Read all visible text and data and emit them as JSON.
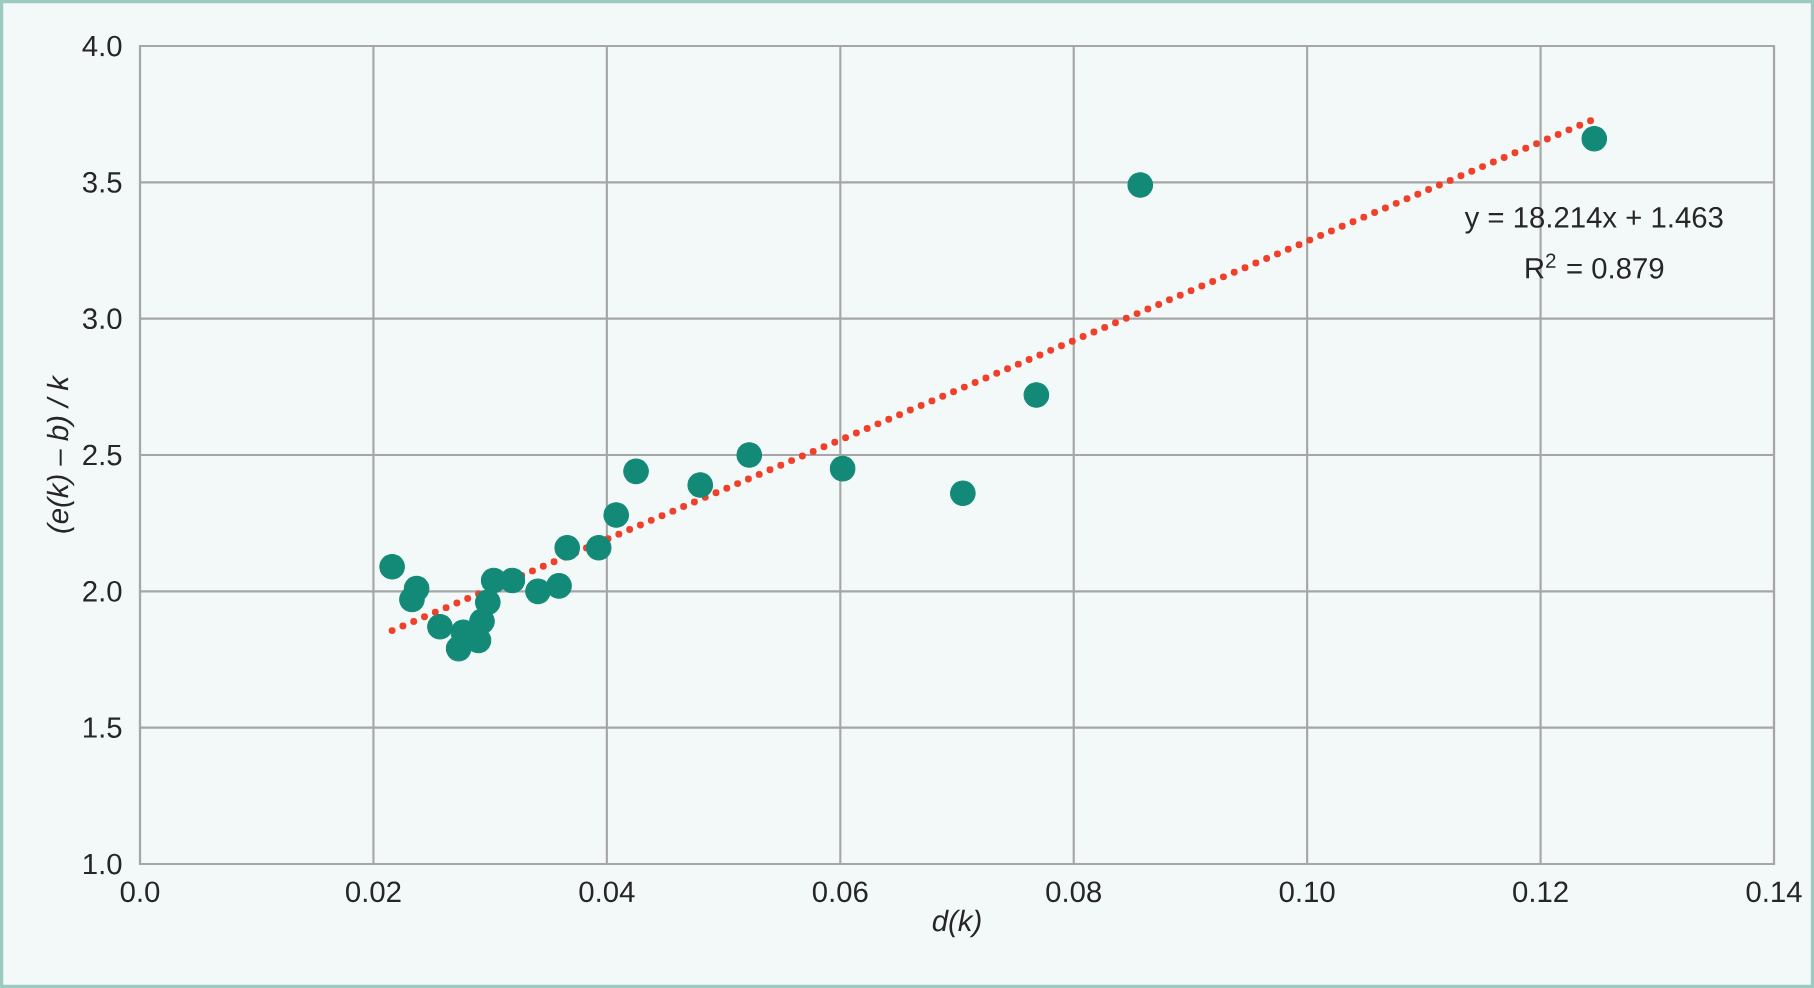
{
  "chart_data": {
    "type": "scatter",
    "xlabel": "d(k)",
    "ylabel": "(e(k) – b) / k",
    "xlim": [
      0,
      0.14
    ],
    "ylim": [
      1,
      4
    ],
    "xticks": [
      {
        "value": 0,
        "label": "0.0"
      },
      0.02,
      0.04,
      0.06,
      0.08,
      {
        "value": 0.1,
        "label": "0.10"
      },
      0.12,
      0.14
    ],
    "yticks": [
      {
        "value": 1,
        "label": "1.0"
      },
      1.5,
      {
        "value": 2,
        "label": "2.0"
      },
      2.5,
      {
        "value": 3,
        "label": "3.0"
      },
      3.5,
      {
        "value": 4,
        "label": "4.0"
      }
    ],
    "grid": true,
    "annotations": [
      "y = 18.214x + 1.463",
      "R$^{2}$ = 0.879"
    ],
    "series": [
      {
        "color": "#138a78",
        "marker": "circle",
        "x": [
          0.0216,
          0.0237,
          0.0233,
          0.0257,
          0.0277,
          0.0273,
          0.029,
          0.0293,
          0.0298,
          0.0303,
          0.0319,
          0.0341,
          0.0359,
          0.0366,
          0.0393,
          0.0408,
          0.0425,
          0.048,
          0.0522,
          0.0602,
          0.0705,
          0.0768,
          0.0857,
          0.1246
        ],
        "values": [
          2.09,
          2.01,
          1.97,
          1.87,
          1.85,
          1.79,
          1.82,
          1.89,
          1.96,
          2.04,
          2.04,
          2.0,
          2.02,
          2.16,
          2.16,
          2.28,
          2.44,
          2.39,
          2.5,
          2.45,
          2.36,
          2.72,
          3.49,
          3.66
        ]
      },
      {
        "type": "line",
        "color": "#f0402a",
        "marker": "none",
        "line_style": "dotted",
        "x": [
          0.0216,
          0.1246
        ],
        "values": [
          1.856,
          3.732
        ]
      }
    ]
  }
}
